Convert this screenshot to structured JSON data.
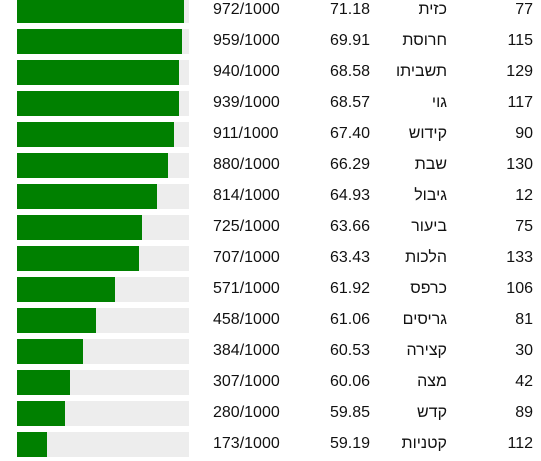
{
  "colors": {
    "bar_fill": "#008000",
    "bar_track": "#ededed"
  },
  "rows": [
    {
      "score": "972/1000",
      "ratio": 0.972,
      "value": "71.18",
      "name": "כזית",
      "number": "77"
    },
    {
      "score": "959/1000",
      "ratio": 0.959,
      "value": "69.91",
      "name": "חרוסת",
      "number": "115"
    },
    {
      "score": "940/1000",
      "ratio": 0.94,
      "value": "68.58",
      "name": "תשביתו",
      "number": "129"
    },
    {
      "score": "939/1000",
      "ratio": 0.939,
      "value": "68.57",
      "name": "גוי",
      "number": "117"
    },
    {
      "score": "911/1000",
      "ratio": 0.911,
      "value": "67.40",
      "name": "קידוש",
      "number": "90"
    },
    {
      "score": "880/1000",
      "ratio": 0.88,
      "value": "66.29",
      "name": "שבת",
      "number": "130"
    },
    {
      "score": "814/1000",
      "ratio": 0.814,
      "value": "64.93",
      "name": "גיבול",
      "number": "12"
    },
    {
      "score": "725/1000",
      "ratio": 0.725,
      "value": "63.66",
      "name": "ביעור",
      "number": "75"
    },
    {
      "score": "707/1000",
      "ratio": 0.707,
      "value": "63.43",
      "name": "הלכות",
      "number": "133"
    },
    {
      "score": "571/1000",
      "ratio": 0.571,
      "value": "61.92",
      "name": "כרפס",
      "number": "106"
    },
    {
      "score": "458/1000",
      "ratio": 0.458,
      "value": "61.06",
      "name": "גריסים",
      "number": "81"
    },
    {
      "score": "384/1000",
      "ratio": 0.384,
      "value": "60.53",
      "name": "קצירה",
      "number": "30"
    },
    {
      "score": "307/1000",
      "ratio": 0.307,
      "value": "60.06",
      "name": "מצה",
      "number": "42"
    },
    {
      "score": "280/1000",
      "ratio": 0.28,
      "value": "59.85",
      "name": "קדש",
      "number": "89"
    },
    {
      "score": "173/1000",
      "ratio": 0.173,
      "value": "59.19",
      "name": "קטניות",
      "number": "112"
    }
  ]
}
